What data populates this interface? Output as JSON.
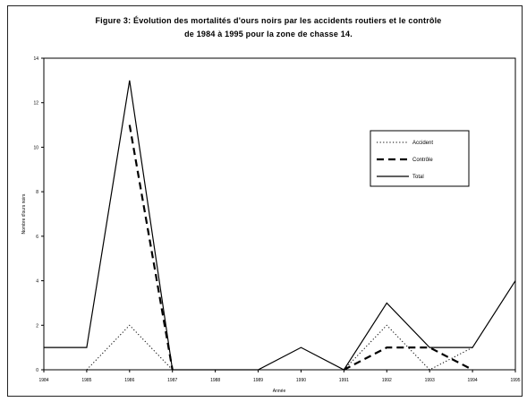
{
  "chart_data": {
    "type": "line",
    "title_line1": "Figure 3: Évolution des mortalités d'ours noirs par les accidents routiers et le contrôle",
    "title_line2": "de 1984 à 1995 pour la zone de chasse 14.",
    "xlabel": "Année",
    "ylabel": "Nombre d'ours noirs",
    "x": [
      "1984",
      "1985",
      "1986",
      "1987",
      "1988",
      "1989",
      "1990",
      "1991",
      "1992",
      "1993",
      "1994",
      "1995"
    ],
    "ylim": [
      0,
      14
    ],
    "yticks": [
      "0",
      "2",
      "4",
      "6",
      "8",
      "10",
      "12",
      "14"
    ],
    "legend_position": "right",
    "series": [
      {
        "name": "Accident",
        "dash": "dotted",
        "values": [
          null,
          0,
          2,
          0,
          null,
          null,
          null,
          0,
          2,
          0,
          1,
          null
        ]
      },
      {
        "name": "Contrôle",
        "dash": "dashed",
        "values": [
          null,
          null,
          11,
          0,
          null,
          null,
          null,
          0,
          1,
          1,
          0,
          null
        ]
      },
      {
        "name": "Total",
        "dash": "solid",
        "values": [
          1,
          1,
          13,
          0,
          0,
          0,
          1,
          0,
          3,
          1,
          1,
          4
        ]
      }
    ]
  }
}
